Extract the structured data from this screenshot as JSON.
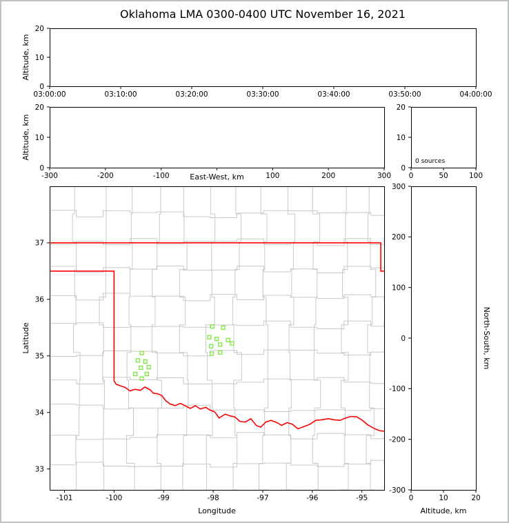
{
  "title": "Oklahoma LMA 0300-0400 UTC November 16, 2021",
  "colors": {
    "state_border": "#ff0000",
    "county": "#c8c8c8",
    "station": "#7ce83c",
    "axis": "#000000"
  },
  "chart_data": [
    {
      "id": "time_height",
      "type": "scatter",
      "title": "",
      "ylabel": "Altitude, km",
      "ylim": [
        0,
        20
      ],
      "yticks": [
        0,
        10,
        20
      ],
      "xtick_labels": [
        "03:00:00",
        "03:10:00",
        "03:20:00",
        "03:30:00",
        "03:40:00",
        "03:50:00",
        "04:00:00"
      ],
      "points": []
    },
    {
      "id": "ew_height",
      "type": "scatter",
      "xlabel": "East-West, km",
      "ylabel": "Altitude, km",
      "xlim": [
        -300,
        300
      ],
      "xticks": [
        -300,
        -200,
        -100,
        0,
        100,
        200,
        300
      ],
      "xtick_text": [
        "-300",
        "-200",
        "-100",
        "",
        "100",
        "200",
        "300"
      ],
      "ylim": [
        0,
        20
      ],
      "yticks": [
        0,
        10,
        20
      ],
      "points": []
    },
    {
      "id": "alt_histogram",
      "type": "bar",
      "annotation": "0 sources",
      "xlim": [
        0,
        100
      ],
      "xticks": [
        0,
        50,
        100
      ],
      "ylim": [
        0,
        20
      ],
      "yticks": [
        0,
        10,
        20
      ],
      "values": []
    },
    {
      "id": "plan_view",
      "type": "map",
      "xlabel": "Longitude",
      "ylabel": "Latitude",
      "xlim": [
        -101.3,
        -94.55
      ],
      "ylim": [
        32.63,
        38.0
      ],
      "xticks": [
        -101,
        -100,
        -99,
        -98,
        -97,
        -96,
        -95
      ],
      "yticks": [
        33,
        34,
        35,
        36,
        37
      ],
      "state_border": {
        "north": [
          [
            -101.3,
            37
          ],
          [
            -94.618,
            37
          ],
          [
            -94.618,
            36.5
          ],
          [
            -94.43,
            36.5
          ]
        ],
        "west_and_south": [
          [
            -101.3,
            36.5
          ],
          [
            -100,
            36.5
          ],
          [
            -100,
            34.56
          ],
          [
            -99.96,
            34.5
          ],
          [
            -99.87,
            34.47
          ],
          [
            -99.77,
            34.44
          ],
          [
            -99.68,
            34.38
          ],
          [
            -99.58,
            34.41
          ],
          [
            -99.47,
            34.39
          ],
          [
            -99.38,
            34.45
          ],
          [
            -99.27,
            34.4
          ],
          [
            -99.21,
            34.34
          ],
          [
            -99.12,
            34.33
          ],
          [
            -99.04,
            34.3
          ],
          [
            -98.96,
            34.21
          ],
          [
            -98.87,
            34.15
          ],
          [
            -98.77,
            34.12
          ],
          [
            -98.66,
            34.16
          ],
          [
            -98.55,
            34.11
          ],
          [
            -98.46,
            34.07
          ],
          [
            -98.36,
            34.12
          ],
          [
            -98.26,
            34.06
          ],
          [
            -98.15,
            34.09
          ],
          [
            -98.06,
            34.04
          ],
          [
            -97.97,
            34.01
          ],
          [
            -97.88,
            33.9
          ],
          [
            -97.76,
            33.97
          ],
          [
            -97.66,
            33.94
          ],
          [
            -97.56,
            33.92
          ],
          [
            -97.46,
            33.84
          ],
          [
            -97.35,
            33.83
          ],
          [
            -97.24,
            33.89
          ],
          [
            -97.13,
            33.77
          ],
          [
            -97.04,
            33.74
          ],
          [
            -96.94,
            33.83
          ],
          [
            -96.83,
            33.86
          ],
          [
            -96.71,
            33.82
          ],
          [
            -96.62,
            33.77
          ],
          [
            -96.51,
            33.82
          ],
          [
            -96.4,
            33.79
          ],
          [
            -96.29,
            33.71
          ],
          [
            -96.17,
            33.75
          ],
          [
            -96.05,
            33.79
          ],
          [
            -95.93,
            33.86
          ],
          [
            -95.81,
            33.87
          ],
          [
            -95.68,
            33.89
          ],
          [
            -95.56,
            33.87
          ],
          [
            -95.44,
            33.86
          ],
          [
            -95.33,
            33.9
          ],
          [
            -95.22,
            33.93
          ],
          [
            -95.1,
            33.92
          ],
          [
            -94.99,
            33.86
          ],
          [
            -94.88,
            33.78
          ],
          [
            -94.76,
            33.72
          ],
          [
            -94.65,
            33.68
          ],
          [
            -94.5,
            33.66
          ]
        ]
      },
      "stations": [
        [
          -98.02,
          35.52
        ],
        [
          -97.8,
          35.5
        ],
        [
          -98.08,
          35.33
        ],
        [
          -97.93,
          35.3
        ],
        [
          -97.7,
          35.28
        ],
        [
          -98.04,
          35.17
        ],
        [
          -97.86,
          35.2
        ],
        [
          -98.03,
          35.04
        ],
        [
          -97.86,
          35.06
        ],
        [
          -97.62,
          35.22
        ],
        [
          -99.44,
          35.05
        ],
        [
          -99.52,
          34.92
        ],
        [
          -99.37,
          34.9
        ],
        [
          -99.46,
          34.79
        ],
        [
          -99.57,
          34.68
        ],
        [
          -99.34,
          34.68
        ],
        [
          -99.44,
          34.6
        ],
        [
          -99.3,
          34.8
        ]
      ]
    },
    {
      "id": "ns_height",
      "type": "scatter",
      "xlabel": "Altitude, km",
      "ylabel_right": "North-South, km",
      "xlim": [
        0,
        20
      ],
      "xticks": [
        0,
        10,
        20
      ],
      "ylim": [
        -300,
        300
      ],
      "yticks": [
        -300,
        -200,
        -100,
        0,
        100,
        200,
        300
      ],
      "points": []
    }
  ]
}
